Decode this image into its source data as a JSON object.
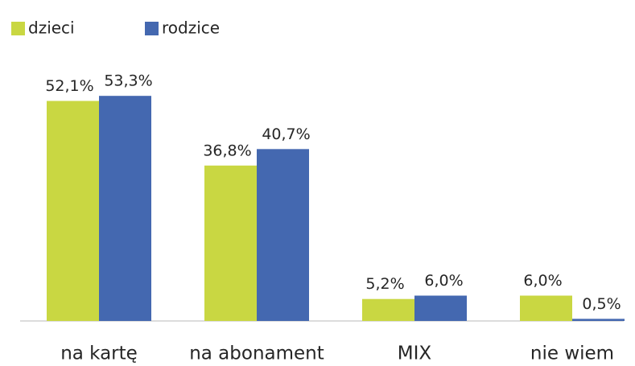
{
  "chart_data": {
    "type": "bar",
    "categories": [
      "na kartę",
      "na abonament",
      "MIX",
      "nie wiem"
    ],
    "series": [
      {
        "name": "dzieci",
        "color": "#c9d742",
        "values": [
          52.1,
          36.8,
          5.2,
          6.0
        ],
        "value_labels": [
          "52,1%",
          "36,8%",
          "5,2%",
          "6,0%"
        ]
      },
      {
        "name": "rodzice",
        "color": "#4468b0",
        "values": [
          53.3,
          40.7,
          6.0,
          0.5
        ],
        "value_labels": [
          "53,3%",
          "40,7%",
          "6,0%",
          "0,5%"
        ]
      }
    ],
    "legend": "top-left"
  }
}
